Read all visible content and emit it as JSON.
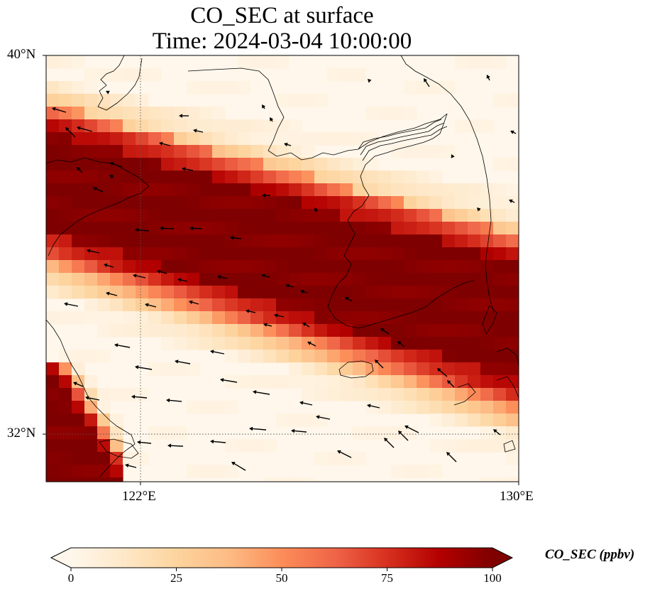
{
  "title": {
    "line1": "CO_SEC at surface",
    "line2": "Time: 2024-03-04 10:00:00"
  },
  "axes": {
    "y_ticks": [
      "40°N",
      "32°N"
    ],
    "x_ticks": [
      "122°E",
      "130°E"
    ],
    "lon_range": [
      120,
      130
    ],
    "lat_range": [
      31,
      40
    ],
    "gridlines": "dotted at 122°E and 32°N"
  },
  "colorbar": {
    "label": "CO_SEC (ppbv)",
    "ticks": [
      "0",
      "25",
      "50",
      "75",
      "100"
    ],
    "min": 0,
    "max": 100,
    "extend": "both",
    "colormap": "OrRd",
    "colors": [
      "#fff7ec",
      "#fee8c8",
      "#fdd49e",
      "#fdbb84",
      "#fc8d59",
      "#ef6548",
      "#d7301f",
      "#b30000",
      "#7f0000"
    ]
  },
  "plume": {
    "description_values": "high concentration band (~100 ppbv) extending from the NW (over the Yellow Sea / Shandong) to the SE (southern Korea), plus a second high-concentration patch in the SW corner"
  },
  "wind": {
    "type": "arrow vectors",
    "prevailing_direction": "westward to north-westward"
  }
}
